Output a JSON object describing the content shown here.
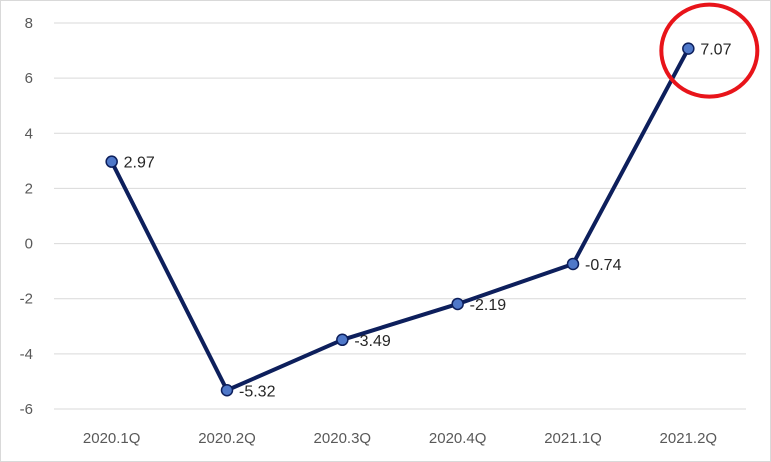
{
  "chart_data": {
    "type": "line",
    "title": "",
    "xlabel": "",
    "ylabel": "",
    "categories": [
      "2020.1Q",
      "2020.2Q",
      "2020.3Q",
      "2020.4Q",
      "2021.1Q",
      "2021.2Q"
    ],
    "series": [
      {
        "values": [
          2.97,
          -5.32,
          -3.49,
          -2.19,
          -0.74,
          7.07
        ],
        "labels": [
          "2.97",
          "-5.32",
          "-3.49",
          "-2.19",
          "-0.74",
          "7.07"
        ],
        "color": "#0d1f5c",
        "marker_color": "#4f78c9"
      }
    ],
    "ylim": [
      -6,
      8
    ],
    "yticks": [
      8,
      6,
      4,
      2,
      0,
      -2,
      -4,
      -6
    ],
    "grid": true,
    "highlight": {
      "category": "2021.2Q",
      "shape": "circle",
      "color": "#e8141a"
    }
  }
}
